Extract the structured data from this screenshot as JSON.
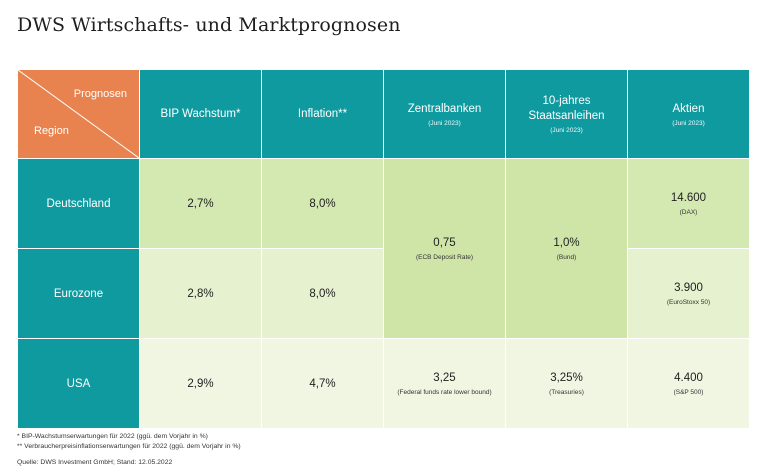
{
  "title": "DWS Wirtschafts- und Marktprognosen",
  "corner": {
    "top": "Prognosen",
    "bottom": "Region"
  },
  "headers": [
    {
      "label": "BIP Wachstum*",
      "sub": ""
    },
    {
      "label": "Inflation**",
      "sub": ""
    },
    {
      "label": "Zentralbanken",
      "sub": "(Juni 2023)"
    },
    {
      "label": "10-jahres\nStaatsanleihen",
      "sub": "(Juni 2023)"
    },
    {
      "label": "Aktien",
      "sub": "(Juni 2023)"
    }
  ],
  "rows": [
    {
      "region": "Deutschland",
      "bip": "2,7%",
      "inflation": "8,0%",
      "aktien": "14.600",
      "aktien_sub": "(DAX)"
    },
    {
      "region": "Eurozone",
      "bip": "2,8%",
      "inflation": "8,0%",
      "aktien": "3.900",
      "aktien_sub": "(EuroStoxx 50)"
    },
    {
      "region": "USA",
      "bip": "2,9%",
      "inflation": "4,7%",
      "aktien": "4.400",
      "aktien_sub": "(S&P 500)"
    }
  ],
  "merged": {
    "ecb": {
      "value": "0,75",
      "sub": "(ECB Deposit Rate)"
    },
    "bund": {
      "value": "1,0%",
      "sub": "(Bund)"
    },
    "fed": {
      "value": "3,25",
      "sub": "(Federal funds rate lower bound)"
    },
    "treasuries": {
      "value": "3,25%",
      "sub": "(Treasuries)"
    }
  },
  "footnotes": [
    "* BIP-Wachstumserwartungen für 2022 (ggü. dem Vorjahr in %)",
    "** Verbraucherpreisinflationserwartungen für 2022 (ggü. dem Vorjahr in %)"
  ],
  "source": "Quelle: DWS Investment GmbH; Stand: 12.05.2022",
  "colors": {
    "teal": "#0f9aa0",
    "orange": "#e8834f",
    "green_dark": "#cfe5a8",
    "green_mid": "#d4e8b1",
    "green_light": "#e5f1cf",
    "green_pale": "#f0f6e2"
  }
}
